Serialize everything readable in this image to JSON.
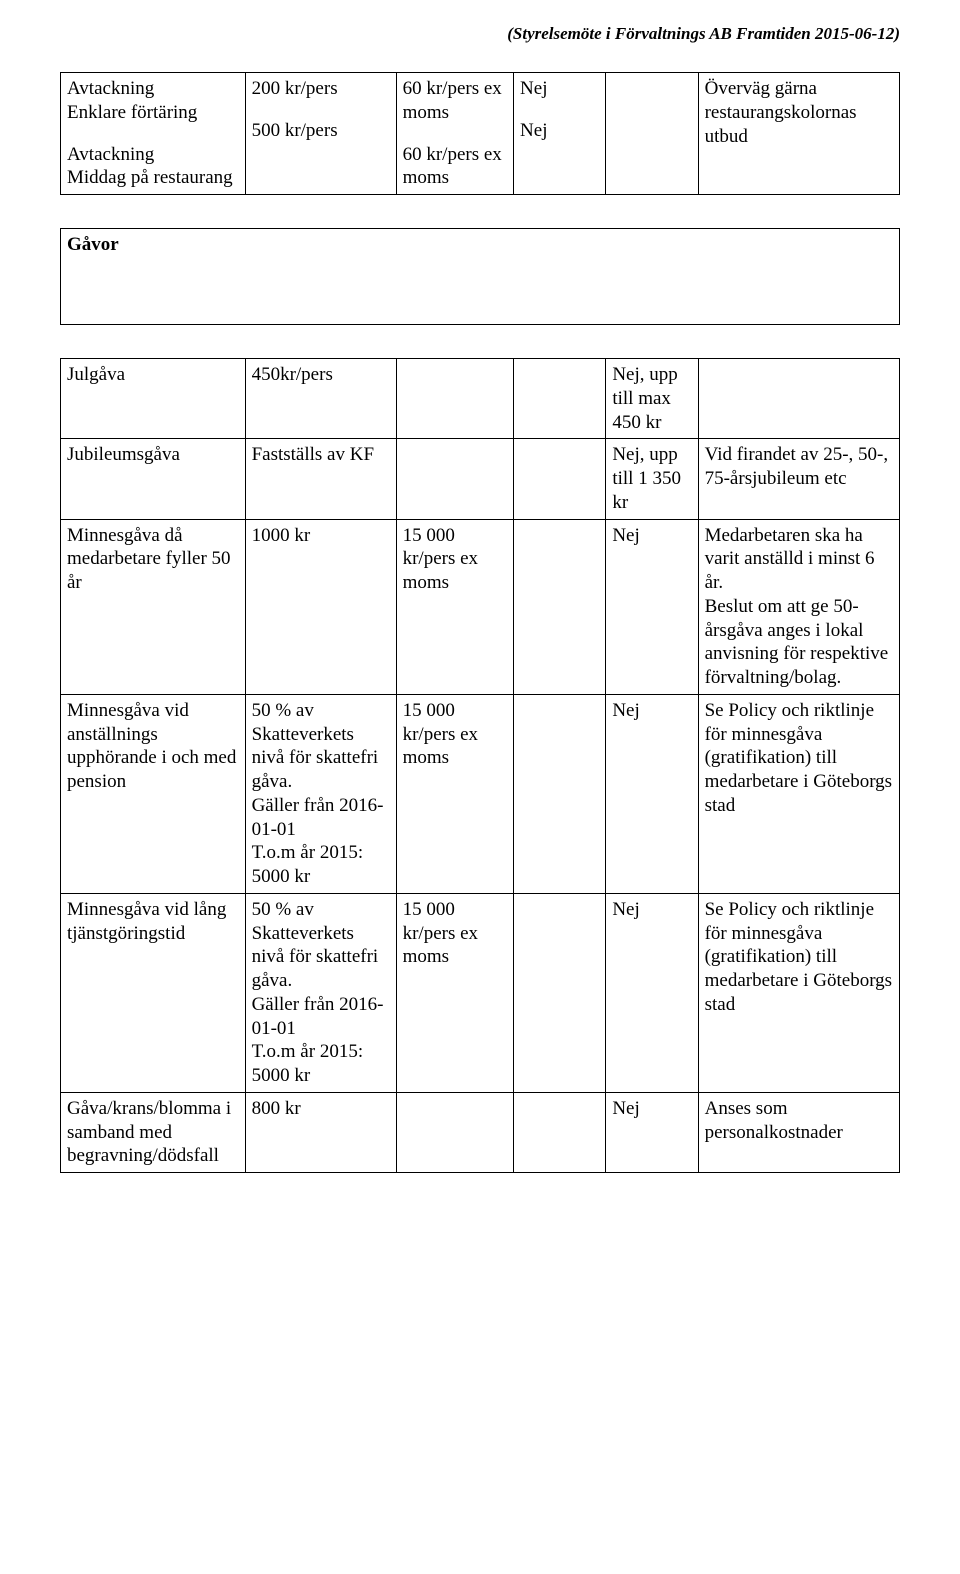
{
  "header_note": "(Styrelsemöte i Förvaltnings AB Framtiden 2015-06-12)",
  "top": {
    "col1": {
      "line1": "Avtackning",
      "line2": "Enklare förtäring",
      "line3": "Avtackning",
      "line4": "Middag på restaurang"
    },
    "col2": {
      "line1": "200 kr/pers",
      "line2": "500 kr/pers"
    },
    "col3": {
      "line1": "60 kr/pers ex moms",
      "line2": "60 kr/pers ex moms"
    },
    "col4": {
      "line1": "Nej",
      "line2": "Nej"
    },
    "col5": "",
    "col6": "Överväg gärna restaurangskolornas utbud"
  },
  "gavor_heading": "Gåvor",
  "rows": [
    {
      "c1": "Julgåva",
      "c2": "450kr/pers",
      "c3": "",
      "c4": "",
      "c5": "Nej, upp till max 450 kr",
      "c6": ""
    },
    {
      "c1": "Jubileumsgåva",
      "c2": "Fastställs av KF",
      "c3": "",
      "c4": "",
      "c5": "Nej, upp till 1 350 kr",
      "c6": "Vid firandet av 25-, 50-, 75-årsjubileum etc"
    },
    {
      "c1": "Minnesgåva då medarbetare fyller 50 år",
      "c2": "1000 kr",
      "c3": "15 000 kr/pers ex moms",
      "c4": "",
      "c5": "Nej",
      "c6": "Medarbetaren ska ha varit anställd i minst 6 år.\nBeslut om att ge 50-årsgåva anges i lokal anvisning för respektive förvaltning/bolag."
    },
    {
      "c1": "Minnesgåva vid anställnings upphörande i och med pension",
      "c2": "50 % av Skatteverkets nivå för skattefri gåva.\nGäller från 2016-01-01\nT.o.m år 2015: 5000 kr",
      "c3": "15 000 kr/pers ex moms",
      "c4": "",
      "c5": "Nej",
      "c6": "Se Policy och riktlinje för minnesgåva (gratifikation) till medarbetare i Göteborgs stad"
    },
    {
      "c1": "Minnesgåva vid lång tjänstgöringstid",
      "c2": "50 % av Skatteverkets nivå för skattefri gåva.\nGäller från 2016-01-01\nT.o.m år 2015: 5000 kr",
      "c3": "15 000 kr/pers ex moms",
      "c4": "",
      "c5": "Nej",
      "c6": "Se Policy och riktlinje för minnesgåva (gratifikation) till medarbetare i Göteborgs stad"
    },
    {
      "c1": "Gåva/krans/blomma i samband med begravning/dödsfall",
      "c2": "800 kr",
      "c3": "",
      "c4": "",
      "c5": "Nej",
      "c6": "Anses som personalkostnader"
    }
  ]
}
